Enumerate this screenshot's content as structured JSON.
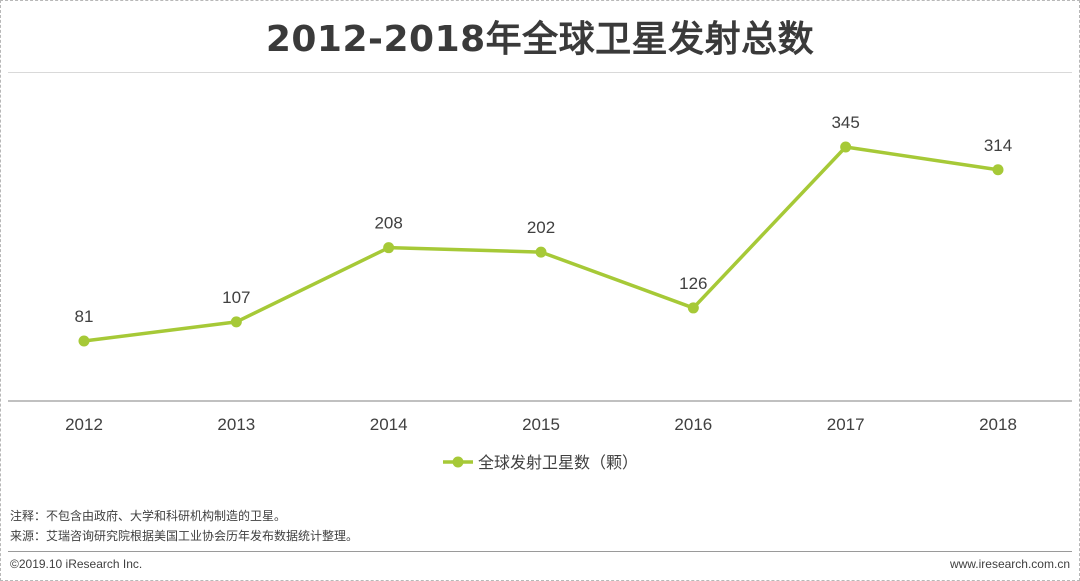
{
  "title": "2012-2018年全球卫星发射总数",
  "chart_data": {
    "type": "line",
    "title": "2012-2018年全球卫星发射总数",
    "categories": [
      "2012",
      "2013",
      "2014",
      "2015",
      "2016",
      "2017",
      "2018"
    ],
    "series": [
      {
        "name": "全球发射卫星数（颗）",
        "values": [
          81,
          107,
          208,
          202,
          126,
          345,
          314
        ]
      }
    ],
    "data_labels": true,
    "ylim": [
      0,
      420
    ],
    "y_axis_visible": false,
    "grid": false,
    "legend": "bottom-center",
    "colors": {
      "series": "#a6c937",
      "axis": "#9a9a9a",
      "text": "#404040"
    }
  },
  "notes": {
    "note1": "注释：不包含由政府、大学和科研机构制造的卫星。",
    "note2": "来源：艾瑞咨询研究院根据美国工业协会历年发布数据统计整理。"
  },
  "footer": {
    "copyright": "©2019.10 iResearch Inc.",
    "website": "www.iresearch.com.cn"
  }
}
